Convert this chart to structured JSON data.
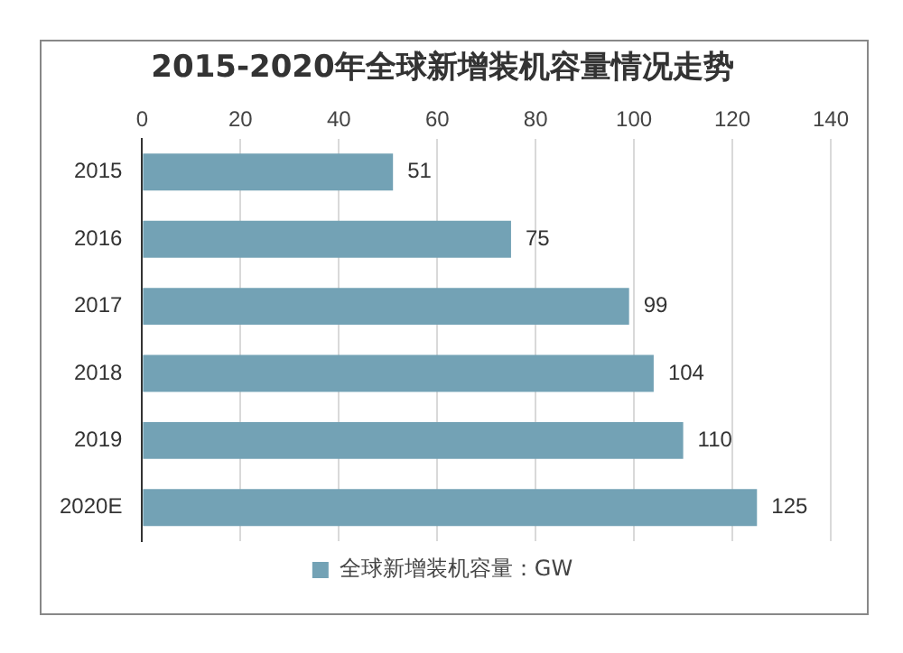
{
  "chart_data": {
    "type": "bar",
    "orientation": "horizontal",
    "title": "2015-2020年全球新增装机容量情况走势",
    "categories": [
      "2015",
      "2016",
      "2017",
      "2018",
      "2019",
      "2020E"
    ],
    "series": [
      {
        "name": "全球新增装机容量：GW",
        "color": "#73a2b5",
        "values": [
          51,
          75,
          99,
          104,
          110,
          125
        ]
      }
    ],
    "xlim": [
      0,
      140
    ],
    "xticks": [
      0,
      20,
      40,
      60,
      80,
      100,
      120,
      140
    ],
    "grid": "x",
    "legend": "bottom",
    "data_labels": true
  }
}
